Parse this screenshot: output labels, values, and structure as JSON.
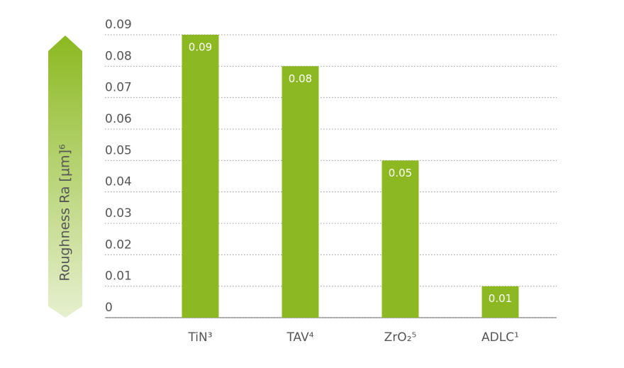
{
  "chart_data": {
    "type": "bar",
    "y_label": "Roughness Ra [µm]⁶",
    "categories": [
      "TiN³",
      "TAV⁴",
      "ZrO₂⁵",
      "ADLC¹"
    ],
    "values": [
      0.09,
      0.08,
      0.05,
      0.01
    ],
    "color": "#8cb921",
    "ylim": [
      0,
      0.09
    ],
    "yticks": [
      0,
      0.01,
      0.02,
      0.03,
      0.04,
      0.05,
      0.06,
      0.07,
      0.08,
      0.09
    ],
    "grid": true
  }
}
